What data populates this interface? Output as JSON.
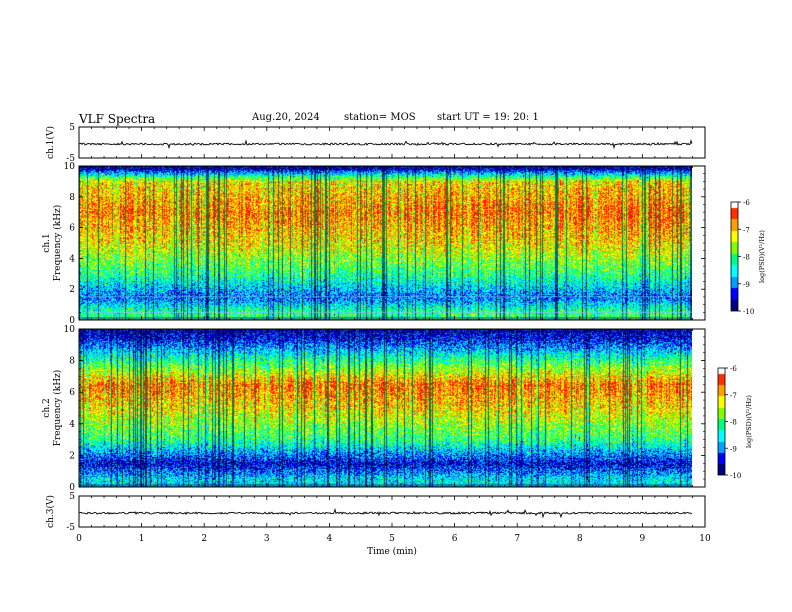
{
  "header": {
    "title": "VLF Spectra",
    "date": "Aug.20, 2024",
    "station": "station= MOS",
    "start": "start  UT =   19: 20: 1"
  },
  "colors": {
    "colormap": [
      "#000080",
      "#0000ff",
      "#00a0ff",
      "#00ffff",
      "#00ff80",
      "#80ff00",
      "#ffff00",
      "#ffa000",
      "#ff3000",
      "#ff0000",
      "#ffffff"
    ]
  },
  "chart_data": [
    {
      "type": "line",
      "panel": "ch1-waveform",
      "ylabel": "ch.1(V)",
      "ylim": [
        -5,
        5
      ],
      "yticks": [
        "5",
        "-5"
      ],
      "x_range_min": [
        0,
        10
      ],
      "description_level": -0.5
    },
    {
      "type": "heatmap",
      "panel": "ch1-spectrogram",
      "ylabel": "ch.1\nFrequency (kHz)",
      "ylabel_lines": [
        "ch.1",
        "Frequency (kHz)"
      ],
      "ylim": [
        0,
        10
      ],
      "yticks": [
        "0",
        "2",
        "4",
        "6",
        "8",
        "10"
      ],
      "x_range_min": [
        0,
        10
      ],
      "colorbar": {
        "label": "log(PSD)(V²/Hz)",
        "ticks": [
          "-6",
          "-7",
          "-8",
          "-9",
          "-10"
        ],
        "range": [
          -10,
          -6
        ]
      },
      "intensity_profile_khz": [
        [
          0.5,
          -8
        ],
        [
          1.5,
          -9
        ],
        [
          3,
          -8
        ],
        [
          5,
          -7
        ],
        [
          7,
          -6.5
        ],
        [
          9,
          -7
        ],
        [
          9.8,
          -9.5
        ]
      ]
    },
    {
      "type": "heatmap",
      "panel": "ch2-spectrogram",
      "ylabel": "ch.2\nFrequency (kHz)",
      "ylabel_lines": [
        "ch.2",
        "Frequency (kHz)"
      ],
      "ylim": [
        0,
        10
      ],
      "yticks": [
        "0",
        "2",
        "4",
        "6",
        "8",
        "10"
      ],
      "x_range_min": [
        0,
        10
      ],
      "colorbar": {
        "label": "log(PSD)(V²/Hz)",
        "ticks": [
          "-6",
          "-7",
          "-8",
          "-9",
          "-10"
        ],
        "range": [
          -10,
          -6
        ]
      },
      "intensity_profile_khz": [
        [
          0.5,
          -8.5
        ],
        [
          1.5,
          -9.5
        ],
        [
          3,
          -8
        ],
        [
          5,
          -7
        ],
        [
          6.5,
          -6.5
        ],
        [
          8,
          -8
        ],
        [
          9.5,
          -9.5
        ]
      ]
    },
    {
      "type": "line",
      "panel": "ch3-waveform",
      "ylabel": "ch.3(V)",
      "ylim": [
        -5,
        5
      ],
      "yticks": [
        "5",
        "-5"
      ],
      "x_range_min": [
        0,
        10
      ],
      "description_level": -0.5
    }
  ],
  "xaxis": {
    "label": "Time  (min)",
    "ticks": [
      "0",
      "1",
      "2",
      "3",
      "4",
      "5",
      "6",
      "7",
      "8",
      "9",
      "10"
    ],
    "range": [
      0,
      10
    ]
  }
}
